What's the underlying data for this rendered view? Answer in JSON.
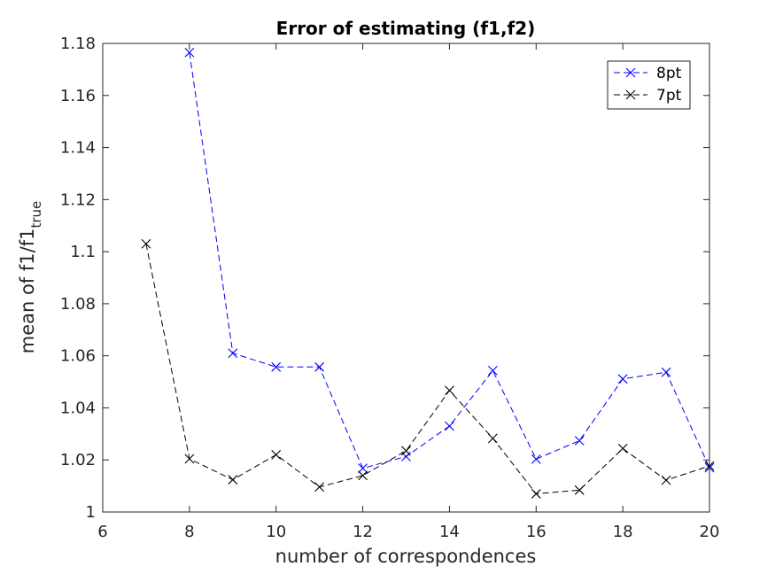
{
  "chart_data": {
    "type": "line",
    "title": "Error of estimating (f1,f2)",
    "xlabel": "number of correspondences",
    "ylabel_main": "mean of f1/f1",
    "ylabel_sub": "true",
    "xlim": [
      6,
      20
    ],
    "ylim": [
      1,
      1.18
    ],
    "xticks": [
      6,
      8,
      10,
      12,
      14,
      16,
      18,
      20
    ],
    "yticks": [
      1,
      1.02,
      1.04,
      1.06,
      1.08,
      1.1,
      1.12,
      1.14,
      1.16,
      1.18
    ],
    "ytick_labels": [
      "1",
      "1.02",
      "1.04",
      "1.06",
      "1.08",
      "1.1",
      "1.12",
      "1.14",
      "1.16",
      "1.18"
    ],
    "grid": false,
    "legend_position": "top-right",
    "series": [
      {
        "name": "8pt",
        "color": "#0000ff",
        "marker": "x",
        "linestyle": "dashed",
        "x": [
          8,
          9,
          10,
          11,
          12,
          13,
          14,
          15,
          16,
          17,
          18,
          19,
          20
        ],
        "y": [
          1.1765,
          1.061,
          1.0557,
          1.0557,
          1.0168,
          1.0213,
          1.033,
          1.0543,
          1.0203,
          1.0274,
          1.0511,
          1.0537,
          1.017
        ]
      },
      {
        "name": "7pt",
        "color": "#000000",
        "marker": "x",
        "linestyle": "dashed",
        "x": [
          7,
          8,
          9,
          10,
          11,
          12,
          13,
          14,
          15,
          16,
          17,
          18,
          19,
          20
        ],
        "y": [
          1.103,
          1.0204,
          1.0124,
          1.022,
          1.0096,
          1.014,
          1.0235,
          1.0467,
          1.0283,
          1.007,
          1.0084,
          1.0244,
          1.0122,
          1.0177
        ]
      }
    ]
  }
}
